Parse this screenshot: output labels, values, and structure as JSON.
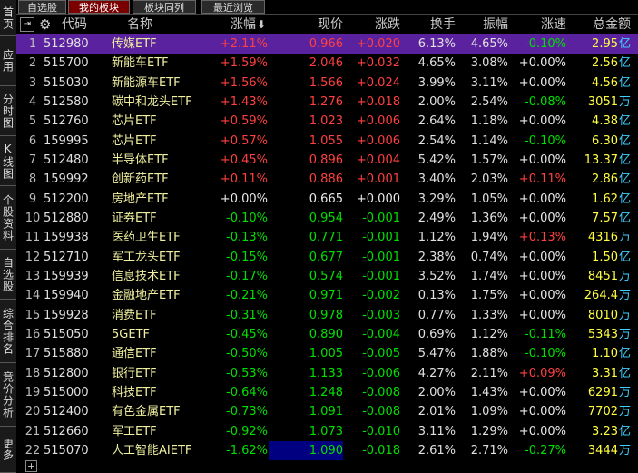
{
  "tabs": [
    "自选股",
    "我的板块",
    "板块同列",
    "最近浏览"
  ],
  "sidebar": [
    "首页",
    "应用",
    "分时图",
    "K线图",
    "个股资料",
    "自选股",
    "综合排名",
    "竞价分析",
    "更多"
  ],
  "table": {
    "headers": [
      "代码",
      "名称",
      "涨幅",
      "现价",
      "涨跌",
      "换手",
      "振幅",
      "涨速",
      "总金额"
    ],
    "rows": [
      [
        "1",
        "512980",
        "传媒ETF",
        "+2.11%",
        "0.966",
        "+0.020",
        "6.13%",
        "4.65%",
        "-0.10%",
        "2.95",
        "亿"
      ],
      [
        "2",
        "515700",
        "新能车ETF",
        "+1.59%",
        "2.046",
        "+0.032",
        "4.65%",
        "3.08%",
        "+0.00%",
        "2.56",
        "亿"
      ],
      [
        "3",
        "515030",
        "新能源车ETF",
        "+1.56%",
        "1.566",
        "+0.024",
        "3.99%",
        "3.11%",
        "+0.00%",
        "4.56",
        "亿"
      ],
      [
        "4",
        "512580",
        "碳中和龙头ETF",
        "+1.43%",
        "1.276",
        "+0.018",
        "2.00%",
        "2.54%",
        "-0.08%",
        "3051",
        "万"
      ],
      [
        "5",
        "512760",
        "芯片ETF",
        "+0.59%",
        "1.023",
        "+0.006",
        "2.64%",
        "1.18%",
        "+0.00%",
        "4.38",
        "亿"
      ],
      [
        "6",
        "159995",
        "芯片ETF",
        "+0.57%",
        "1.055",
        "+0.006",
        "2.54%",
        "1.14%",
        "-0.10%",
        "6.30",
        "亿"
      ],
      [
        "7",
        "512480",
        "半导体ETF",
        "+0.45%",
        "0.896",
        "+0.004",
        "5.42%",
        "1.57%",
        "+0.00%",
        "13.37",
        "亿"
      ],
      [
        "8",
        "159992",
        "创新药ETF",
        "+0.11%",
        "0.886",
        "+0.001",
        "3.40%",
        "2.03%",
        "+0.11%",
        "2.86",
        "亿"
      ],
      [
        "9",
        "512200",
        "房地产ETF",
        "+0.00%",
        "0.665",
        "+0.000",
        "3.29%",
        "1.05%",
        "+0.00%",
        "1.62",
        "亿"
      ],
      [
        "10",
        "512880",
        "证券ETF",
        "-0.10%",
        "0.954",
        "-0.001",
        "2.49%",
        "1.36%",
        "+0.00%",
        "7.57",
        "亿"
      ],
      [
        "11",
        "159938",
        "医药卫生ETF",
        "-0.13%",
        "0.771",
        "-0.001",
        "1.12%",
        "1.94%",
        "+0.13%",
        "4316",
        "万"
      ],
      [
        "12",
        "512710",
        "军工龙头ETF",
        "-0.15%",
        "0.677",
        "-0.001",
        "2.38%",
        "0.74%",
        "+0.00%",
        "1.50",
        "亿"
      ],
      [
        "13",
        "159939",
        "信息技术ETF",
        "-0.17%",
        "0.574",
        "-0.001",
        "3.52%",
        "1.74%",
        "+0.00%",
        "8451",
        "万"
      ],
      [
        "14",
        "159940",
        "金融地产ETF",
        "-0.21%",
        "0.971",
        "-0.002",
        "0.13%",
        "1.75%",
        "+0.00%",
        "264.4",
        "万"
      ],
      [
        "15",
        "159928",
        "消费ETF",
        "-0.31%",
        "0.978",
        "-0.003",
        "0.77%",
        "1.33%",
        "+0.00%",
        "8010",
        "万"
      ],
      [
        "16",
        "515050",
        "5GETF",
        "-0.45%",
        "0.890",
        "-0.004",
        "0.69%",
        "1.12%",
        "-0.11%",
        "5343",
        "万"
      ],
      [
        "17",
        "515880",
        "通信ETF",
        "-0.50%",
        "1.005",
        "-0.005",
        "5.47%",
        "1.88%",
        "-0.10%",
        "1.10",
        "亿"
      ],
      [
        "18",
        "512800",
        "银行ETF",
        "-0.53%",
        "1.133",
        "-0.006",
        "4.27%",
        "2.11%",
        "+0.09%",
        "3.31",
        "亿"
      ],
      [
        "19",
        "515000",
        "科技ETF",
        "-0.64%",
        "1.248",
        "-0.008",
        "2.00%",
        "1.43%",
        "+0.00%",
        "6291",
        "万"
      ],
      [
        "20",
        "512400",
        "有色金属ETF",
        "-0.73%",
        "1.091",
        "-0.008",
        "2.01%",
        "1.09%",
        "+0.00%",
        "7702",
        "万"
      ],
      [
        "21",
        "512660",
        "军工ETF",
        "-0.92%",
        "1.073",
        "-0.010",
        "3.11%",
        "1.29%",
        "+0.00%",
        "3.23",
        "亿"
      ],
      [
        "22",
        "515070",
        "人工智能AIETF",
        "-1.62%",
        "1.090",
        "-0.018",
        "2.61%",
        "2.71%",
        "-0.27%",
        "3444",
        "万"
      ]
    ]
  }
}
